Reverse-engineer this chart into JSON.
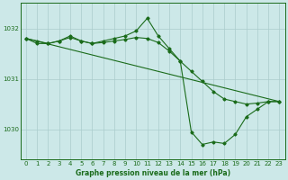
{
  "background_color": "#cce8e8",
  "grid_color": "#aacccc",
  "line_color": "#1a6b1a",
  "title": "Graphe pression niveau de la mer (hPa)",
  "xlim": [
    -0.5,
    23.5
  ],
  "ylim": [
    1029.4,
    1032.5
  ],
  "yticks": [
    1030,
    1031,
    1032
  ],
  "xticks": [
    0,
    1,
    2,
    3,
    4,
    5,
    6,
    7,
    8,
    9,
    10,
    11,
    12,
    13,
    14,
    15,
    16,
    17,
    18,
    19,
    20,
    21,
    22,
    23
  ],
  "series": [
    {
      "x": [
        0,
        1,
        2,
        3,
        4,
        5,
        6,
        7,
        8,
        9,
        10,
        11,
        12,
        13,
        14,
        15,
        16,
        17,
        18,
        19,
        20,
        21,
        22,
        23
      ],
      "y": [
        1031.8,
        1031.7,
        1031.7,
        1031.75,
        1031.85,
        1031.75,
        1031.7,
        1031.75,
        1031.8,
        1031.85,
        1031.95,
        1032.2,
        1031.85,
        1031.6,
        1031.35,
        1029.95,
        1029.7,
        1029.75,
        1029.72,
        1029.9,
        1030.25,
        1030.4,
        1030.55,
        1030.55
      ]
    },
    {
      "x": [
        0,
        1,
        2,
        3,
        4,
        5,
        6,
        7,
        8,
        9,
        10,
        11,
        12,
        13,
        14,
        15,
        16,
        17,
        18,
        19,
        20,
        21,
        22,
        23
      ],
      "y": [
        1031.8,
        1031.75,
        1031.7,
        1031.75,
        1031.82,
        1031.75,
        1031.7,
        1031.72,
        1031.75,
        1031.78,
        1031.82,
        1031.8,
        1031.72,
        1031.55,
        1031.35,
        1031.15,
        1030.95,
        1030.75,
        1030.6,
        1030.55,
        1030.5,
        1030.52,
        1030.55,
        1030.55
      ]
    },
    {
      "x": [
        0,
        23
      ],
      "y": [
        1031.8,
        1030.55
      ]
    }
  ]
}
